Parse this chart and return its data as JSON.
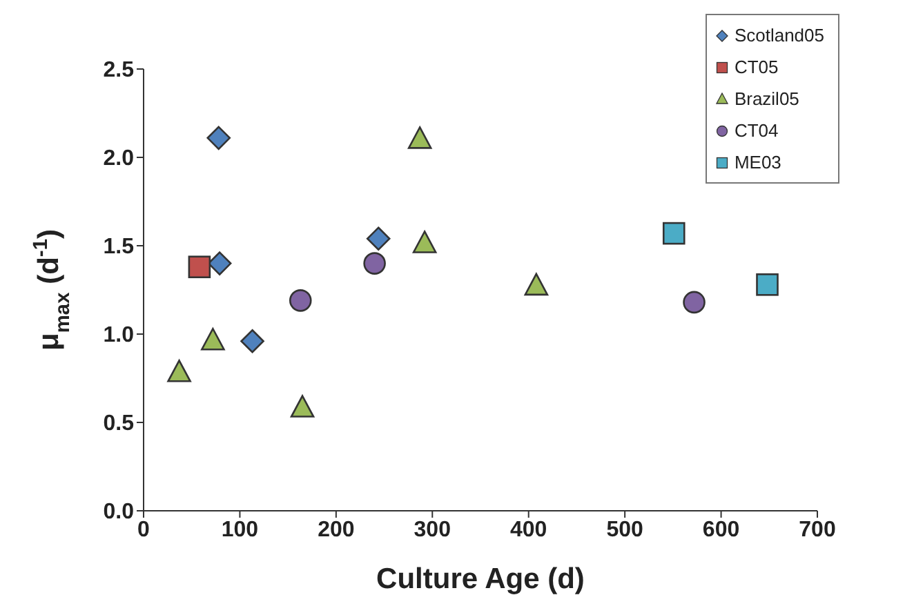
{
  "chart_data": {
    "type": "scatter",
    "xlabel": "Culture Age (d)",
    "ylabel": "μ$_{max}$ (d$^{-1}$)",
    "xlim": [
      0,
      700
    ],
    "xticks": [
      0,
      100,
      200,
      300,
      400,
      500,
      600,
      700
    ],
    "ylim": [
      0,
      2.5
    ],
    "yticks": [
      {
        "value": 0,
        "label": "0.0"
      },
      {
        "value": 0.5,
        "label": "0.5"
      },
      {
        "value": 1,
        "label": "1.0"
      },
      {
        "value": 1.5,
        "label": "1.5"
      },
      {
        "value": 2,
        "label": "2.0"
      },
      {
        "value": 2.5,
        "label": "2.5"
      }
    ],
    "grid": false,
    "legend": "top right",
    "series": [
      {
        "name": "Scotland05",
        "color": "#4f81bd",
        "marker": "diamond",
        "x": [
          78,
          79,
          113,
          244
        ],
        "values": [
          2.11,
          1.4,
          0.96,
          1.54
        ]
      },
      {
        "name": "CT05",
        "color": "#c0504d",
        "marker": "square",
        "x": [
          58
        ],
        "values": [
          1.38
        ]
      },
      {
        "name": "Brazil05",
        "color": "#9bbb59",
        "marker": "triangle",
        "x": [
          37,
          72,
          165,
          287,
          292,
          408
        ],
        "values": [
          0.78,
          0.96,
          0.58,
          2.1,
          1.51,
          1.27
        ]
      },
      {
        "name": "CT04",
        "color": "#8064a2",
        "marker": "circle",
        "x": [
          163,
          240,
          572
        ],
        "values": [
          1.19,
          1.4,
          1.18
        ]
      },
      {
        "name": "ME03",
        "color": "#4bacc6",
        "marker": "square",
        "x": [
          551,
          648
        ],
        "values": [
          1.57,
          1.28
        ]
      }
    ]
  }
}
